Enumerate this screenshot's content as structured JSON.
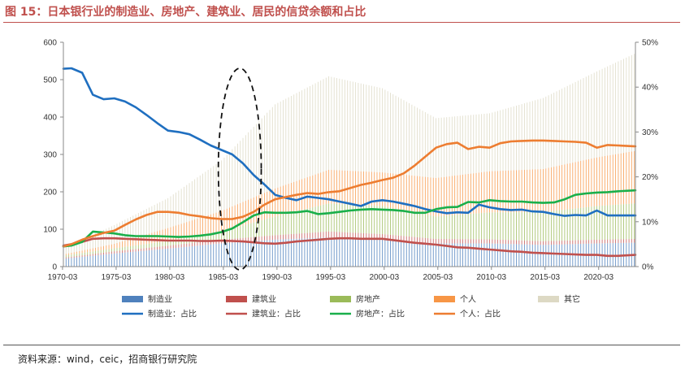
{
  "figure": {
    "title": "图 15：日本银行业的制造业、房地产、建筑业、居民的信贷余额和占比",
    "source": "资料来源：wind，ceic，招商银行研究院"
  },
  "chart_data": {
    "type": "bar+line",
    "x_start": 1970.25,
    "x_end": 2023.6,
    "x_ticks": [
      "1970-03",
      "1975-03",
      "1980-03",
      "1985-03",
      "1990-03",
      "1995-03",
      "2000-03",
      "2005-03",
      "2010-03",
      "2015-03",
      "2020-03"
    ],
    "y_left": {
      "min": 0,
      "max": 600,
      "ticks": [
        "0",
        "100",
        "200",
        "300",
        "400",
        "500",
        "600"
      ]
    },
    "y_right": {
      "min": 0,
      "max": 50,
      "ticks": [
        "0%",
        "10%",
        "20%",
        "30%",
        "40%",
        "50%"
      ]
    },
    "grid": false,
    "legend_position": "bottom",
    "stacked_bars_left_axis": {
      "x": [
        1970,
        1975,
        1980,
        1985,
        1990,
        1995,
        2000,
        2005,
        2010,
        2015,
        2020,
        2023.5
      ],
      "series": [
        {
          "name": "制造业",
          "color": "#4f81bd",
          "values": [
            20,
            35,
            48,
            62,
            72,
            78,
            72,
            62,
            62,
            58,
            62,
            64
          ]
        },
        {
          "name": "建筑业",
          "color": "#c0504d",
          "values": [
            3,
            6,
            8,
            10,
            12,
            16,
            15,
            12,
            11,
            10,
            10,
            10
          ]
        },
        {
          "name": "房地产",
          "color": "#9bbb59",
          "values": [
            5,
            8,
            12,
            22,
            50,
            75,
            75,
            60,
            72,
            78,
            90,
            95
          ]
        },
        {
          "name": "个人",
          "color": "#f79646",
          "values": [
            3,
            12,
            35,
            55,
            75,
            90,
            90,
            103,
            110,
            115,
            130,
            140
          ]
        },
        {
          "name": "其它",
          "color": "#ddd9c4",
          "values": [
            15,
            50,
            80,
            135,
            225,
            250,
            225,
            160,
            155,
            190,
            230,
            260
          ]
        }
      ]
    },
    "lines_right_axis": {
      "x": [
        1970.25,
        1971,
        1972,
        1973,
        1974,
        1975,
        1976,
        1977,
        1978,
        1979,
        1980,
        1981,
        1982,
        1983,
        1984,
        1985,
        1986,
        1987,
        1988,
        1989,
        1990,
        1991,
        1992,
        1993,
        1994,
        1995,
        1996,
        1997,
        1998,
        1999,
        2000,
        2001,
        2002,
        2003,
        2004,
        2005,
        2006,
        2007,
        2008,
        2009,
        2010,
        2011,
        2012,
        2013,
        2014,
        2015,
        2016,
        2017,
        2018,
        2019,
        2020,
        2021,
        2022,
        2023.6
      ],
      "series": [
        {
          "name": "制造业：占比",
          "color": "#1f6fc0",
          "values": [
            44.1,
            44.2,
            43.2,
            38.3,
            37.3,
            37.5,
            36.8,
            35.5,
            33.8,
            32.0,
            30.3,
            30.0,
            29.5,
            28.3,
            27.0,
            26.0,
            25.0,
            23.0,
            20.4,
            18.3,
            16.0,
            15.3,
            14.8,
            15.6,
            15.3,
            15.0,
            14.5,
            14.0,
            13.5,
            14.5,
            14.8,
            14.5,
            14.0,
            13.5,
            12.8,
            12.3,
            11.9,
            12.1,
            12.0,
            13.8,
            13.2,
            12.8,
            12.6,
            12.7,
            12.3,
            12.2,
            11.7,
            11.3,
            11.5,
            11.4,
            12.5,
            11.4,
            11.4,
            11.4
          ]
        },
        {
          "name": "建筑业：占比",
          "color": "#c0504d",
          "values": [
            4.7,
            5.0,
            5.5,
            6.2,
            6.3,
            6.3,
            6.2,
            6.1,
            6.0,
            5.9,
            5.8,
            5.8,
            5.8,
            5.7,
            5.7,
            5.8,
            5.7,
            5.6,
            5.4,
            5.2,
            5.1,
            5.3,
            5.6,
            5.8,
            6.0,
            6.2,
            6.3,
            6.3,
            6.2,
            6.2,
            6.2,
            5.9,
            5.6,
            5.3,
            5.1,
            4.9,
            4.6,
            4.3,
            4.2,
            4.0,
            3.8,
            3.6,
            3.4,
            3.3,
            3.1,
            3.0,
            2.9,
            2.8,
            2.7,
            2.6,
            2.6,
            2.4,
            2.4,
            2.6
          ]
        },
        {
          "name": "房地产：占比",
          "color": "#1aaf4b",
          "values": [
            4.5,
            4.7,
            5.5,
            7.8,
            7.6,
            7.4,
            7.0,
            6.8,
            6.8,
            6.8,
            6.7,
            6.6,
            6.7,
            6.9,
            7.2,
            7.7,
            8.5,
            9.9,
            11.4,
            12.1,
            12.0,
            12.0,
            12.1,
            12.4,
            11.7,
            11.9,
            12.2,
            12.5,
            12.7,
            12.8,
            12.7,
            12.6,
            12.4,
            12.0,
            12.0,
            12.8,
            13.2,
            13.3,
            14.4,
            14.3,
            14.8,
            14.6,
            14.5,
            14.5,
            14.3,
            14.2,
            14.3,
            15.0,
            16.0,
            16.3,
            16.5,
            16.6,
            16.8,
            17.0
          ]
        },
        {
          "name": "个人：占比",
          "color": "#ed7d31",
          "values": [
            4.5,
            5.0,
            6.0,
            6.8,
            7.5,
            8.0,
            9.3,
            10.5,
            11.5,
            12.2,
            12.2,
            12.0,
            11.5,
            11.2,
            10.8,
            10.6,
            10.6,
            11.1,
            12.2,
            13.8,
            15.0,
            15.5,
            16.0,
            16.4,
            16.2,
            16.6,
            16.8,
            17.5,
            18.2,
            18.7,
            19.3,
            19.8,
            20.8,
            22.5,
            24.5,
            26.5,
            27.3,
            27.6,
            26.2,
            26.7,
            26.5,
            27.5,
            27.9,
            28.0,
            28.1,
            28.1,
            28.0,
            27.9,
            27.8,
            27.6,
            26.5,
            27.1,
            27.0,
            26.8
          ]
        }
      ]
    },
    "legend": [
      {
        "label": "制造业",
        "kind": "bar",
        "color": "#4f81bd"
      },
      {
        "label": "建筑业",
        "kind": "bar",
        "color": "#c0504d"
      },
      {
        "label": "房地产",
        "kind": "bar",
        "color": "#9bbb59"
      },
      {
        "label": "个人",
        "kind": "bar",
        "color": "#f79646"
      },
      {
        "label": "其它",
        "kind": "bar",
        "color": "#ddd9c4"
      },
      {
        "label": "制造业：占比",
        "kind": "line",
        "color": "#1f6fc0"
      },
      {
        "label": "建筑业：占比",
        "kind": "line",
        "color": "#c0504d"
      },
      {
        "label": "房地产：占比",
        "kind": "line",
        "color": "#1aaf4b"
      },
      {
        "label": "个人：占比",
        "kind": "line",
        "color": "#ed7d31"
      }
    ],
    "annotation": {
      "shape": "dashed-ellipse",
      "x_center": 1986.7,
      "x_halfwidth": 2.0
    }
  }
}
